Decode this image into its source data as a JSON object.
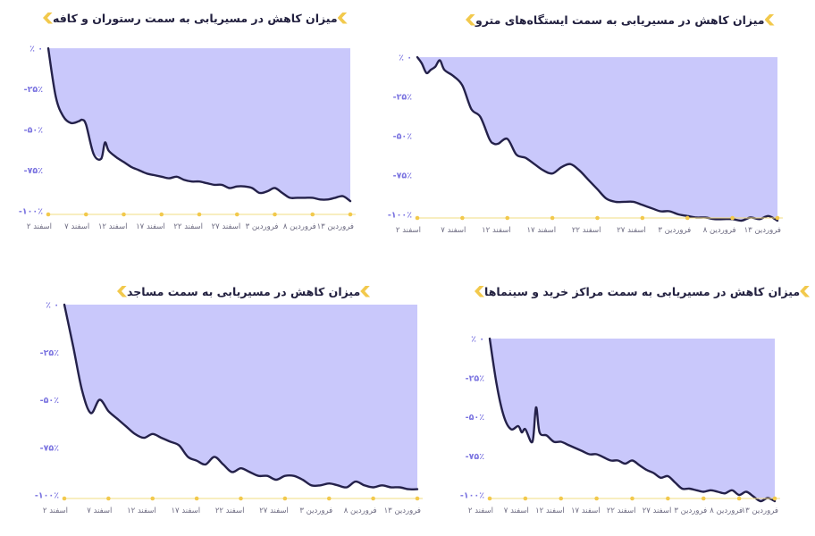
{
  "x_ticks": [
    "۲ اسفند",
    "۷ اسفند",
    "۱۲ اسفند",
    "۱۷ اسفند",
    "۲۲ اسفند",
    "۲۷ اسفند",
    "۳ فروردین",
    "۸ فروردین",
    "۱۳ فروردین"
  ],
  "y_ticks": [
    "٪ ۰",
    "-۲۵٪",
    "-۵۰٪",
    "-۷۵٪",
    "-۱۰۰٪"
  ],
  "colors": {
    "fill": "#c9c8fb",
    "line": "#24214a",
    "tick_dot": "#f2c94c",
    "axis": "#f2dc82",
    "y_text": "#7a73e0",
    "chevron": "#f2c94c"
  },
  "chart_data": [
    {
      "type": "area",
      "title": "میزان کاهش در مسیریابی به سمت رستوران و کافه",
      "x_domain": [
        0,
        40
      ],
      "ylim": [
        -100,
        0
      ],
      "x": [
        0,
        1,
        2,
        3,
        4,
        4.5,
        5,
        6,
        7,
        7.5,
        8,
        9,
        10,
        11,
        12,
        13,
        14,
        15,
        16,
        17,
        18,
        19,
        20,
        21,
        22,
        23,
        24,
        25,
        26,
        27,
        28,
        29,
        30,
        31,
        32,
        33,
        34,
        35,
        36,
        37,
        38,
        39,
        40
      ],
      "values": [
        0,
        -30,
        -42,
        -46,
        -45,
        -44,
        -47,
        -65,
        -68,
        -58,
        -63,
        -67,
        -70,
        -73,
        -75,
        -77,
        -78,
        -79,
        -80,
        -79,
        -81,
        -82,
        -82,
        -83,
        -84,
        -84,
        -86,
        -85,
        -85,
        -86,
        -89,
        -88,
        -86,
        -89,
        -92,
        -92,
        -92,
        -92,
        -93,
        -93,
        -92,
        -91,
        -94
      ]
    },
    {
      "type": "area",
      "title": "میزان کاهش در مسیریابی به سمت ایستگاه‌های مترو",
      "x_domain": [
        0,
        40
      ],
      "ylim": [
        -100,
        0
      ],
      "x": [
        0,
        0.5,
        1,
        1.5,
        2,
        2.5,
        3,
        4,
        5,
        6,
        7,
        8,
        8.5,
        9,
        10,
        11,
        12,
        13,
        14,
        15,
        16,
        17,
        18,
        19,
        20,
        21,
        22,
        23,
        24,
        25,
        26,
        27,
        28,
        29,
        30,
        31,
        32,
        33,
        34,
        35,
        36,
        37,
        38,
        39,
        40
      ],
      "values": [
        0,
        -4,
        -10,
        -8,
        -6,
        -2,
        -8,
        -12,
        -18,
        -33,
        -38,
        -52,
        -55,
        -55,
        -52,
        -62,
        -64,
        -68,
        -72,
        -74,
        -70,
        -68,
        -72,
        -78,
        -84,
        -90,
        -92,
        -92,
        -92,
        -94,
        -96,
        -98,
        -98,
        -100,
        -101,
        -102,
        -102,
        -103,
        -103,
        -103,
        -104,
        -102,
        -103,
        -101,
        -104
      ]
    },
    {
      "type": "area",
      "title": "میزان کاهش در مسیریابی به سمت مساجد",
      "x_domain": [
        0,
        40
      ],
      "ylim": [
        -100,
        0
      ],
      "x": [
        0,
        1,
        2,
        3,
        4,
        5,
        6,
        7,
        8,
        9,
        10,
        11,
        12,
        13,
        14,
        15,
        16,
        17,
        18,
        19,
        20,
        21,
        22,
        23,
        24,
        25,
        26,
        27,
        28,
        29,
        30,
        31,
        32,
        33,
        34,
        35,
        36,
        37,
        38,
        39,
        40
      ],
      "values": [
        0,
        -22,
        -45,
        -57,
        -50,
        -56,
        -60,
        -64,
        -68,
        -70,
        -68,
        -70,
        -72,
        -74,
        -80,
        -82,
        -84,
        -80,
        -84,
        -88,
        -86,
        -88,
        -90,
        -90,
        -92,
        -90,
        -90,
        -92,
        -95,
        -95,
        -94,
        -95,
        -96,
        -93,
        -95,
        -96,
        -95,
        -96,
        -96,
        -97,
        -97
      ]
    },
    {
      "type": "area",
      "title": "میزان کاهش در مسیریابی به سمت مراکز خرید و سینماها",
      "x_domain": [
        0,
        40
      ],
      "ylim": [
        -100,
        0
      ],
      "x": [
        0,
        1,
        2,
        3,
        4,
        4.5,
        5,
        6,
        6.5,
        7,
        8,
        9,
        10,
        11,
        12,
        13,
        14,
        15,
        16,
        17,
        18,
        19,
        20,
        21,
        22,
        23,
        24,
        25,
        26,
        27,
        28,
        29,
        30,
        31,
        32,
        33,
        34,
        35,
        36,
        37,
        38,
        39,
        40
      ],
      "values": [
        0,
        -30,
        -50,
        -58,
        -56,
        -60,
        -58,
        -66,
        -44,
        -60,
        -62,
        -66,
        -66,
        -68,
        -70,
        -72,
        -74,
        -74,
        -76,
        -78,
        -78,
        -80,
        -78,
        -81,
        -84,
        -86,
        -89,
        -88,
        -92,
        -96,
        -96,
        -97,
        -98,
        -97,
        -98,
        -99,
        -97,
        -100,
        -98,
        -101,
        -104,
        -102,
        -104
      ]
    }
  ]
}
